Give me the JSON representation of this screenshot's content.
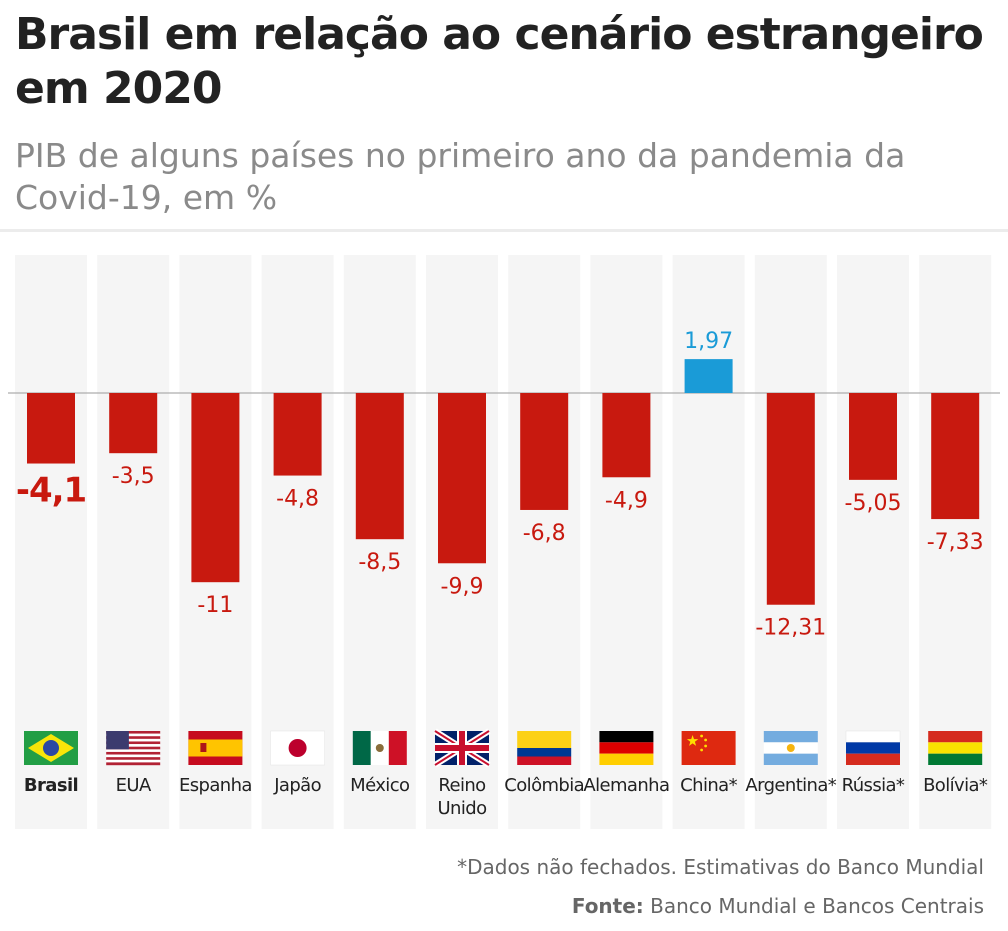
{
  "title": "Brasil em relação ao cenário estrangeiro em 2020",
  "subtitle": "PIB de alguns países no primeiro ano da pandemia da Covid-19, em %",
  "note": "*Dados não fechados. Estimativas do Banco Mundial",
  "source": {
    "label": "Fonte:",
    "text": "Banco Mundial e Bancos Centrais"
  },
  "colors": {
    "negative": "#c8190f",
    "positive": "#1a9bd7",
    "column_bg": "#f5f5f5",
    "baseline": "#9a9a9a"
  },
  "chart_data": {
    "type": "bar",
    "title": "Brasil em relação ao cenário estrangeiro em 2020",
    "subtitle": "PIB de alguns países no primeiro ano da pandemia da Covid-19, em %",
    "categories": [
      "Brasil",
      "EUA",
      "Espanha",
      "Japão",
      "México",
      "Reino Unido",
      "Colômbia",
      "Alemanha",
      "China*",
      "Argentina*",
      "Rússia*",
      "Bolívia*"
    ],
    "values": [
      -4.1,
      -3.5,
      -11,
      -4.8,
      -8.5,
      -9.9,
      -6.8,
      -4.9,
      1.97,
      -12.31,
      -5.05,
      -7.33
    ],
    "value_labels": [
      "-4,1",
      "-3,5",
      "-11",
      "-4,8",
      "-8,5",
      "-9,9",
      "-6,8",
      "-4,9",
      "1,97",
      "-12,31",
      "-5,05",
      "-7,33"
    ],
    "highlight": "Brasil",
    "flags": [
      "brazil-flag-icon",
      "usa-flag-icon",
      "spain-flag-icon",
      "japan-flag-icon",
      "mexico-flag-icon",
      "uk-flag-icon",
      "colombia-flag-icon",
      "germany-flag-icon",
      "china-flag-icon",
      "argentina-flag-icon",
      "russia-flag-icon",
      "bolivia-flag-icon"
    ],
    "xlabel": "",
    "ylabel": "",
    "ylim": [
      -12.31,
      1.97
    ],
    "grid": false,
    "legend": "none"
  }
}
